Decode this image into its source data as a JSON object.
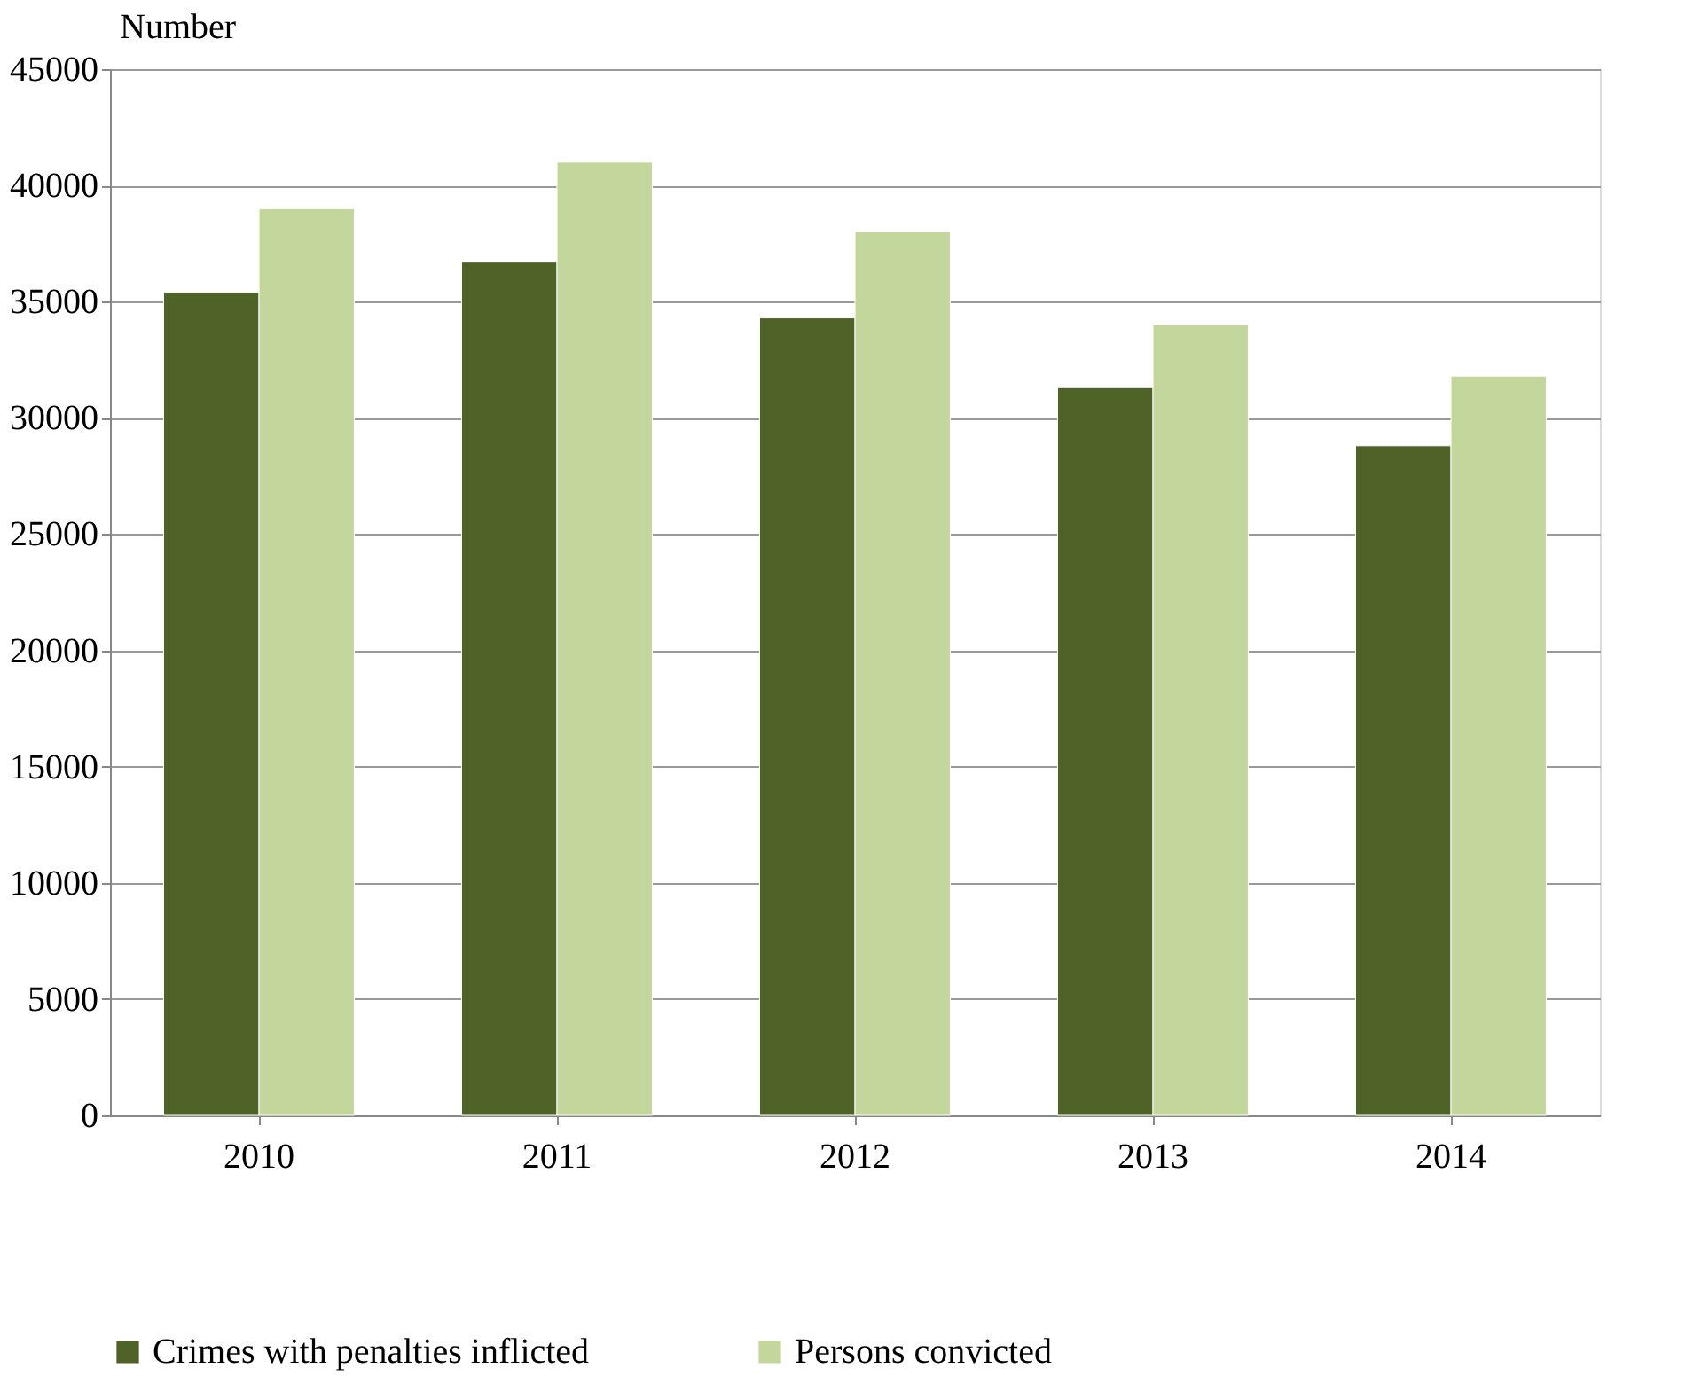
{
  "chart_data": {
    "type": "bar",
    "ylabel": "Number",
    "categories": [
      "2010",
      "2011",
      "2012",
      "2013",
      "2014"
    ],
    "series": [
      {
        "name": "Crimes with penalties inflicted",
        "color": "#4f6228",
        "values": [
          35400,
          36700,
          34300,
          31300,
          28800
        ]
      },
      {
        "name": "Persons convicted",
        "color": "#c3d69b",
        "values": [
          39000,
          41000,
          38000,
          34000,
          31800
        ]
      }
    ],
    "ylim": [
      0,
      45000
    ],
    "yticks": [
      0,
      5000,
      10000,
      15000,
      20000,
      25000,
      30000,
      35000,
      40000,
      45000
    ],
    "grid": "y",
    "legend": "bottom"
  }
}
